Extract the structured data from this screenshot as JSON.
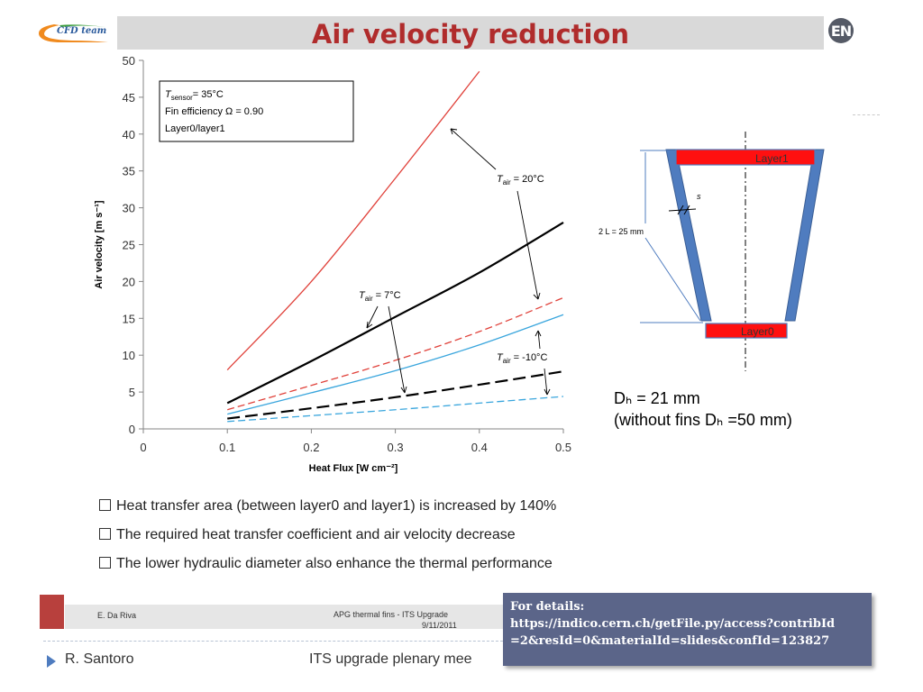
{
  "slide": {
    "title": "Air velocity reduction",
    "logo_text": "CFD team",
    "badge_text": "EN"
  },
  "chart_data": {
    "type": "line",
    "title": "",
    "xlabel": "Heat Flux [W cm⁻²]",
    "ylabel": "Air velocity [m s⁻¹]",
    "xlim": [
      0,
      0.5
    ],
    "ylim": [
      0,
      50
    ],
    "x_ticks": [
      "0",
      "0.1",
      "0.2",
      "0.3",
      "0.4",
      "0.5"
    ],
    "y_ticks": [
      "0",
      "5",
      "10",
      "15",
      "20",
      "25",
      "30",
      "35",
      "40",
      "45",
      "50"
    ],
    "grid": false,
    "series": [
      {
        "group": "T_air = 20°C",
        "color": "#e0413a",
        "style": "solid",
        "width": 1.3,
        "x": [
          0.1,
          0.2,
          0.3,
          0.4
        ],
        "y": [
          8,
          20,
          34,
          48.5
        ]
      },
      {
        "group": "T_air = 20°C",
        "color": "#e0413a",
        "style": "dashed",
        "width": 1.3,
        "x": [
          0.1,
          0.2,
          0.3,
          0.4,
          0.5
        ],
        "y": [
          2.6,
          5.9,
          9.3,
          13.2,
          17.8
        ]
      },
      {
        "group": "T_air = 7°C",
        "color": "#000000",
        "style": "solid",
        "width": 2.2,
        "x": [
          0.1,
          0.2,
          0.3,
          0.4,
          0.5
        ],
        "y": [
          3.5,
          9.2,
          15.2,
          21.2,
          28
        ]
      },
      {
        "group": "T_air = 7°C",
        "color": "#3aa6dd",
        "style": "solid",
        "width": 1.3,
        "x": [
          0.1,
          0.2,
          0.3,
          0.4,
          0.5
        ],
        "y": [
          2,
          4.9,
          7.9,
          11.4,
          15.5
        ]
      },
      {
        "group": "T_air = -10°C",
        "color": "#000000",
        "style": "dashed",
        "width": 2.2,
        "x": [
          0.1,
          0.2,
          0.3,
          0.4,
          0.5
        ],
        "y": [
          1.4,
          2.8,
          4.3,
          6,
          7.8
        ]
      },
      {
        "group": "T_air = -10°C",
        "color": "#3aa6dd",
        "style": "dashed",
        "width": 1.3,
        "x": [
          0.1,
          0.2,
          0.3,
          0.4,
          0.5
        ],
        "y": [
          1,
          1.8,
          2.6,
          3.5,
          4.4
        ]
      }
    ],
    "info_box": [
      "= 35°C",
      "Fin efficiency Ω = 0.90",
      "Layer0/layer1"
    ],
    "labels": {
      "t_sensor_main": "T",
      "t_sensor_sub": "sensor",
      "t_air_main": "T",
      "t_air_sub": "air",
      "v20": " = 20°C",
      "v7": " = 7°C",
      "vm10": " = -10°C"
    }
  },
  "diagram": {
    "layer1": "Layer1",
    "layer0": "Layer0",
    "length_label": "2 L = 25 mm",
    "thickness_label": "s"
  },
  "dh": {
    "main": "Dₕ = 21 mm",
    "sub": "(without fins Dₕ =50 mm)"
  },
  "bullets": [
    "Heat transfer area (between layer0 and layer1) is increased by 140%",
    "The required heat transfer coefficient and air velocity decrease",
    "The lower hydraulic diameter also enhance the thermal performance"
  ],
  "footer": {
    "author": "E. Da Riva",
    "talk": "APG thermal fins - ITS Upgrade",
    "date": "9/11/2011",
    "presenter": "R. Santoro",
    "meeting": "ITS upgrade plenary mee"
  },
  "details": {
    "heading": "For details:",
    "line1": "https://indico.cern.ch/getFile.py/access?contribId",
    "line2": "=2&resId=0&materialId=slides&confId=123827"
  }
}
